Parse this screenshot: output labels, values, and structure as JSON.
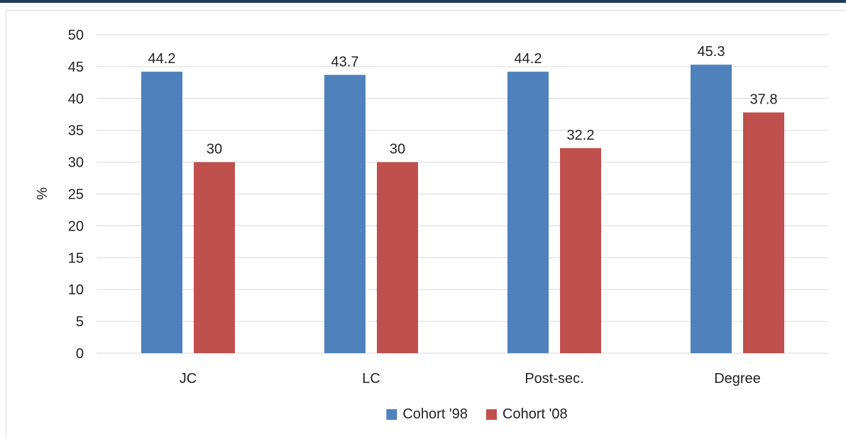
{
  "colors": {
    "top_bar": "#1f3b5e",
    "gridline": "#d9d9d9",
    "axis_text": "#222222"
  },
  "chart_data": {
    "type": "bar",
    "categories": [
      "JC",
      "LC",
      "Post-sec.",
      "Degree"
    ],
    "series": [
      {
        "name": "Cohort '98",
        "values": [
          44.2,
          43.7,
          44.2,
          45.3
        ],
        "color": "#4f81bd"
      },
      {
        "name": "Cohort '08",
        "values": [
          30,
          30,
          32.2,
          37.8
        ],
        "color": "#c0504d"
      }
    ],
    "data_labels": [
      [
        "44.2",
        "43.7",
        "44.2",
        "45.3"
      ],
      [
        "30",
        "30",
        "32.2",
        "37.8"
      ]
    ],
    "ylabel": "%",
    "ylim": [
      0,
      50
    ],
    "yticks": [
      0,
      5,
      10,
      15,
      20,
      25,
      30,
      35,
      40,
      45,
      50
    ],
    "grid": true,
    "legend": "bottom"
  }
}
